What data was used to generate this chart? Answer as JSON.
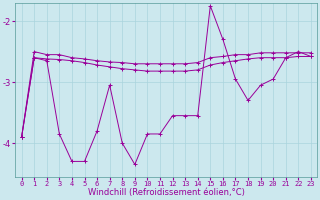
{
  "xlabel": "Windchill (Refroidissement éolien,°C)",
  "background_color": "#cce8ee",
  "grid_color": "#aad4dd",
  "line_color": "#990099",
  "x": [
    0,
    1,
    2,
    3,
    4,
    5,
    6,
    7,
    8,
    9,
    10,
    11,
    12,
    13,
    14,
    15,
    16,
    17,
    18,
    19,
    20,
    21,
    22,
    23
  ],
  "line1": [
    -3.9,
    -2.5,
    -2.55,
    -2.55,
    -2.6,
    -2.62,
    -2.65,
    -2.67,
    -2.68,
    -2.7,
    -2.7,
    -2.7,
    -2.7,
    -2.7,
    -2.68,
    -2.6,
    -2.58,
    -2.55,
    -2.55,
    -2.52,
    -2.52,
    -2.52,
    -2.52,
    -2.52
  ],
  "line2": [
    -3.9,
    -2.6,
    -2.62,
    -2.63,
    -2.65,
    -2.68,
    -2.72,
    -2.75,
    -2.78,
    -2.8,
    -2.82,
    -2.82,
    -2.82,
    -2.82,
    -2.8,
    -2.72,
    -2.68,
    -2.65,
    -2.62,
    -2.6,
    -2.6,
    -2.6,
    -2.58,
    -2.58
  ],
  "line3": [
    -3.9,
    -2.6,
    -2.65,
    -3.85,
    -4.3,
    -4.3,
    -3.8,
    -3.05,
    -4.0,
    -4.35,
    -3.85,
    -3.85,
    -3.55,
    -3.55,
    -3.55,
    -1.75,
    -2.3,
    -2.95,
    -3.3,
    -3.05,
    -2.95,
    -2.6,
    -2.5,
    -2.58
  ],
  "ylim": [
    -4.55,
    -1.7
  ],
  "yticks": [
    -4,
    -3,
    -2
  ],
  "ytick_labels": [
    "-4",
    "-3",
    "-2"
  ],
  "figsize": [
    3.2,
    2.0
  ],
  "dpi": 100,
  "font_size_x": 5,
  "font_size_y": 6,
  "font_size_xlabel": 6
}
